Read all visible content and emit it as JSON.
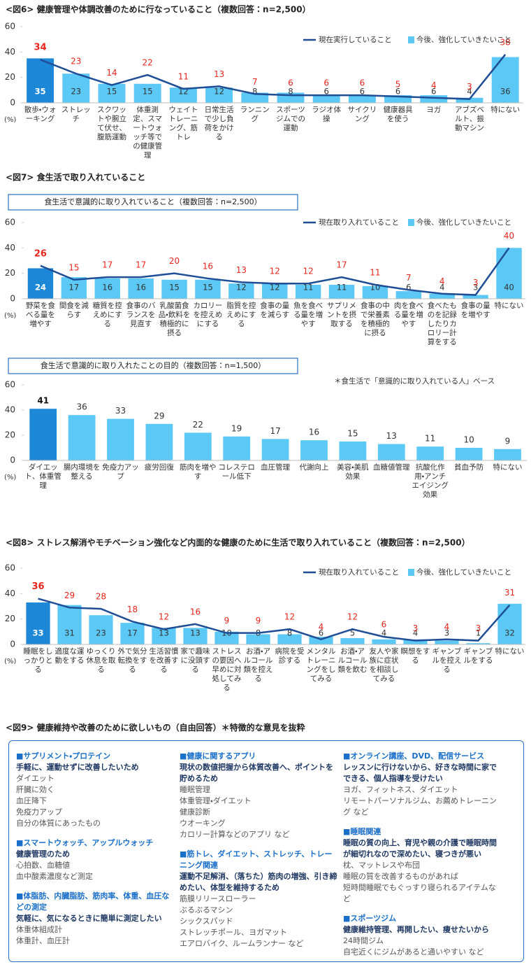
{
  "figure7_title": "<図7> 食生活で取り入れていること",
  "chart_data": [
    {
      "type": "combo",
      "title": "<図6> 健康管理や体調改善のために行なっていること（複数回答：n=2,500）",
      "y_unit": "(%)",
      "categories": [
        "散歩・ウォーキング",
        "ストレッチ",
        "スクワットや腕立て伏せ、腹筋運動",
        "体重測定、スマートウォッチ等での健康管理",
        "ウェイトトレーニング、筋トレ",
        "日常生活で少し負荷をかける",
        "ランニング",
        "スポーツジムでの運動",
        "ラジオ体操",
        "サイクリング",
        "健康器具を使う",
        "ヨガ",
        "アブズベルト、振動マシン",
        "特にない"
      ],
      "series": [
        {
          "name": "現在実行していること",
          "kind": "line",
          "color": "#1f4e96",
          "label_color": "#e8261d",
          "values": [
            34,
            23,
            14,
            22,
            11,
            13,
            7,
            6,
            6,
            6,
            5,
            4,
            3,
            38
          ]
        },
        {
          "name": "今後、強化していきたいこと",
          "kind": "bar",
          "color": "#5bc8f5",
          "colors": [
            "#1e88d8",
            "#5bc8f5",
            "#5bc8f5",
            "#5bc8f5",
            "#5bc8f5",
            "#5bc8f5",
            "#5bc8f5",
            "#5bc8f5",
            "#5bc8f5",
            "#5bc8f5",
            "#5bc8f5",
            "#5bc8f5",
            "#5bc8f5",
            "#5bc8f5"
          ],
          "values": [
            35,
            23,
            15,
            15,
            12,
            12,
            8,
            8,
            6,
            6,
            6,
            6,
            4,
            36
          ]
        }
      ],
      "ylim": [
        0,
        60
      ],
      "yticks": [
        0,
        20,
        40,
        60
      ],
      "grid": false
    },
    {
      "type": "combo",
      "box_title": "食生活で意識的に取り入れていること（複数回答：n=2,500）",
      "y_unit": "(%)",
      "categories": [
        "野菜を食べる量を増やす",
        "間食を減らす",
        "糖質を控えめにする",
        "食事のバランスを見直す",
        "乳酸菌食品・飲料を積極的に摂る",
        "カロリーを控えめにする",
        "脂質を控えめにする",
        "食事の量を減らす",
        "魚を食べる量を増やす",
        "サプリメントを摂取する",
        "食事の中で栄養素を積極的に摂る",
        "肉を食べる量を増やす",
        "食べたものを記録したりカロリー計算をする",
        "食事の量を増やす",
        "特にない"
      ],
      "series": [
        {
          "name": "現在取り入れていること",
          "kind": "line",
          "color": "#1f4e96",
          "label_color": "#e8261d",
          "values": [
            26,
            15,
            17,
            17,
            20,
            16,
            13,
            12,
            12,
            17,
            11,
            7,
            4,
            3,
            40
          ]
        },
        {
          "name": "今後、強化していきたいこと",
          "kind": "bar",
          "color": "#5bc8f5",
          "colors": [
            "#1e88d8",
            "#5bc8f5",
            "#5bc8f5",
            "#5bc8f5",
            "#5bc8f5",
            "#5bc8f5",
            "#5bc8f5",
            "#5bc8f5",
            "#5bc8f5",
            "#5bc8f5",
            "#5bc8f5",
            "#5bc8f5",
            "#5bc8f5",
            "#5bc8f5",
            "#5bc8f5"
          ],
          "values": [
            24,
            17,
            16,
            16,
            15,
            15,
            12,
            12,
            11,
            11,
            10,
            6,
            4,
            3,
            40
          ]
        }
      ],
      "ylim": [
        0,
        60
      ],
      "yticks": [
        0,
        20,
        40,
        60
      ],
      "grid": false
    },
    {
      "type": "bar",
      "box_title": "食生活で意識的に取り入れたことの目的（複数回答：n=1,500）",
      "note": "＊食生活で「意識的に取り入れている人」ベース",
      "y_unit": "(%)",
      "categories": [
        "ダイエット、体重管理",
        "腸内環境を整える",
        "免疫力アップ",
        "疲労回復",
        "筋肉を増やす",
        "コレステロール低下",
        "血圧管理",
        "代謝向上",
        "美容・美肌効果",
        "血糖値管理",
        "抗酸化作用・アンチエイジング効果",
        "貧血予防",
        "特にない"
      ],
      "values": [
        41,
        36,
        33,
        29,
        22,
        19,
        17,
        16,
        15,
        13,
        11,
        10,
        9
      ],
      "colors": [
        "#1e88d8",
        "#5bc8f5",
        "#5bc8f5",
        "#5bc8f5",
        "#5bc8f5",
        "#5bc8f5",
        "#5bc8f5",
        "#5bc8f5",
        "#5bc8f5",
        "#5bc8f5",
        "#5bc8f5",
        "#5bc8f5",
        "#5bc8f5"
      ],
      "ylim": [
        0,
        60
      ],
      "yticks": [
        0,
        20,
        40,
        60
      ],
      "grid": false
    },
    {
      "type": "combo",
      "title": "<図8> ストレス解消やモチベーション強化など内面的な健康のために生活で取り入れていること（複数回答：n=2,500）",
      "y_unit": "(%)",
      "categories": [
        "睡眠をしっかりとる",
        "適度な運動をする",
        "ゆっくり休息を取る",
        "外で気分転換をする",
        "生活習慣を改善する",
        "家で趣味に没頭する",
        "ストレスの要因へ早めに対処してみる",
        "お酒・アルコール類を控える",
        "病院を受診する",
        "メンタルトレーニングをしてみる",
        "お酒・アルコール類を飲む",
        "友人や家族に症状を相談してみる",
        "瞑想をする",
        "ギャンブルを控える",
        "ギャンブルをする",
        "特にない"
      ],
      "series": [
        {
          "name": "現在取り入れていること",
          "kind": "line",
          "color": "#1f4e96",
          "label_color": "#e8261d",
          "values": [
            36,
            29,
            28,
            18,
            12,
            16,
            9,
            9,
            12,
            4,
            12,
            6,
            3,
            4,
            3,
            31
          ]
        },
        {
          "name": "今後、強化していきたいこと",
          "kind": "bar",
          "color": "#5bc8f5",
          "colors": [
            "#1e88d8",
            "#5bc8f5",
            "#5bc8f5",
            "#5bc8f5",
            "#5bc8f5",
            "#5bc8f5",
            "#5bc8f5",
            "#5bc8f5",
            "#5bc8f5",
            "#5bc8f5",
            "#5bc8f5",
            "#5bc8f5",
            "#5bc8f5",
            "#5bc8f5",
            "#5bc8f5",
            "#5bc8f5"
          ],
          "values": [
            33,
            31,
            23,
            17,
            13,
            13,
            10,
            8,
            8,
            6,
            5,
            4,
            4,
            3,
            1,
            32
          ]
        }
      ],
      "ylim": [
        0,
        60
      ],
      "yticks": [
        0,
        20,
        40,
        60
      ],
      "grid": false
    }
  ],
  "figure9": {
    "title": "<図9> 健康維持や改善のために欲しいもの（自由回答）＊特徴的な意見を抜粋",
    "columns": [
      [
        {
          "heading": "■サプリメント・プロテイン",
          "reason": "手軽に、運動せずに改善したいため",
          "items": [
            "ダイエット",
            "肝臓に効く",
            "血圧降下",
            "免疫力アップ",
            "自分の体質にあったもの"
          ]
        },
        {
          "heading": "■スマートウォッチ、アップルウォッチ",
          "reason": "健康管理のため",
          "items": [
            "心拍数、血糖値",
            "血中酸素濃度など測定"
          ]
        },
        {
          "heading": "■体脂肪、内臓脂肪、筋肉率、体重、血圧などの測定",
          "reason": "気軽に、気になるときに簡単に測定したい",
          "items": [
            "体重体組成計",
            "体重計、血圧計"
          ]
        }
      ],
      [
        {
          "heading": "■健康に関するアプリ",
          "reason": "現状の数値把握から体質改善へ、ポイントを貯めるため",
          "items": [
            "睡眠管理",
            "体重管理・ダイエット",
            "健康診断",
            "ウオーキング",
            "カロリー計算などのアプリ など"
          ]
        },
        {
          "heading": "■筋トレ、ダイエット、ストレッチ、トレーニング関連",
          "reason": "運動不足解消、（落ちた）筋肉の増強、引き締めたい、体型を維持するため",
          "items": [
            "筋膜リリースローラー",
            "ぶるぶるマシン",
            "シックスパッド",
            "ストレッチポール、ヨガマット",
            "エアロバイク、ルームランナー など"
          ]
        }
      ],
      [
        {
          "heading": "■オンライン講座、DVD、配信サービス",
          "reason": "レッスンに行けないから、好きな時間に家でできる、個人指導を受けたい",
          "items": [
            "ヨガ、フィットネス、ダイエット",
            "リモートパーソナルジム、お薦めトレーニング など"
          ]
        },
        {
          "heading": "■睡眠関連",
          "reason": "睡眠の質の向上、育児や親の介護で睡眠時間が細切れなので深めたい、寝つきが悪い",
          "items": [
            "枕、マットレスや布団",
            "睡眠の質を改善するものがあれば",
            "短時間睡眠でもぐっすり寝られるアイテムなど"
          ]
        },
        {
          "heading": "■スポーツジム",
          "reason": "健康維持管理、再開したい、痩せたいから",
          "items": [
            "24時間ジム",
            "自宅近くにジムがあると通いやすい など"
          ]
        }
      ]
    ]
  }
}
